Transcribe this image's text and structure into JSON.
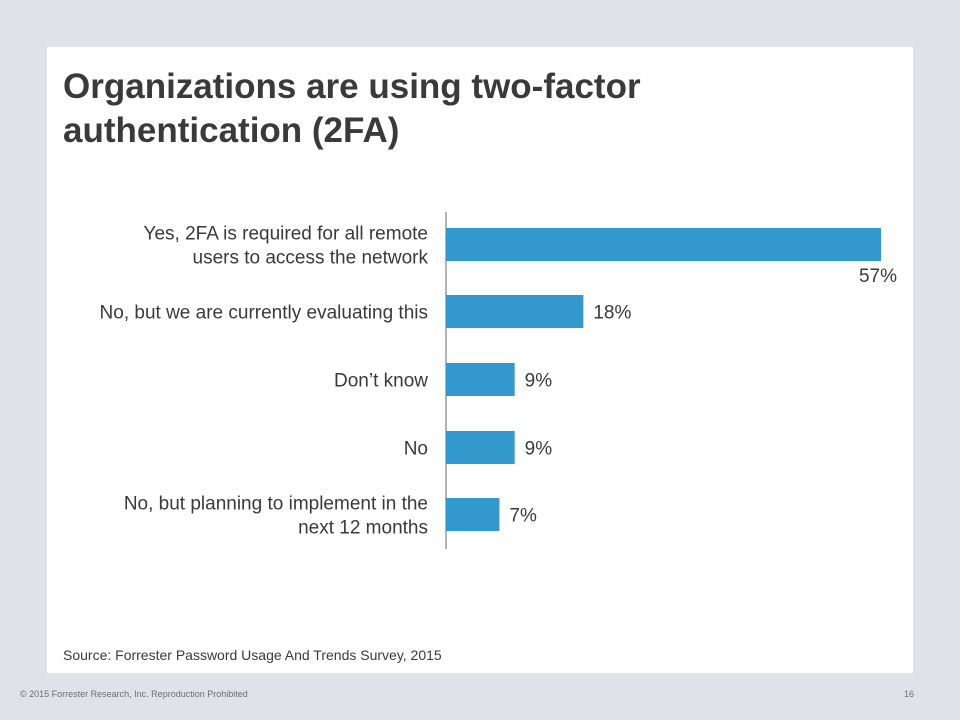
{
  "slide": {
    "title": "Organizations are using two-factor\nauthentication (2FA)",
    "source": "Source: Forrester Password Usage And Trends Survey, 2015"
  },
  "footer": {
    "copyright": "© 2015 Forrester Research, Inc. Reproduction Prohibited",
    "page_number": "16"
  },
  "colors": {
    "bar": "#3399cc",
    "axis": "#9a9a9a",
    "text": "#3a3a3a"
  },
  "chart_data": {
    "type": "bar",
    "orientation": "horizontal",
    "categories": [
      [
        "Yes, 2FA is required for all remote",
        "users to access the network"
      ],
      [
        "No, but we are currently evaluating this"
      ],
      [
        "Don’t know"
      ],
      [
        "No"
      ],
      [
        "No, but planning to implement in the",
        "next 12 months"
      ]
    ],
    "values": [
      57,
      18,
      9,
      9,
      7
    ],
    "value_labels": [
      "57%",
      "18%",
      "9%",
      "9%",
      "7%"
    ],
    "xlim": [
      0,
      57
    ],
    "grid": false,
    "legend": "none"
  }
}
